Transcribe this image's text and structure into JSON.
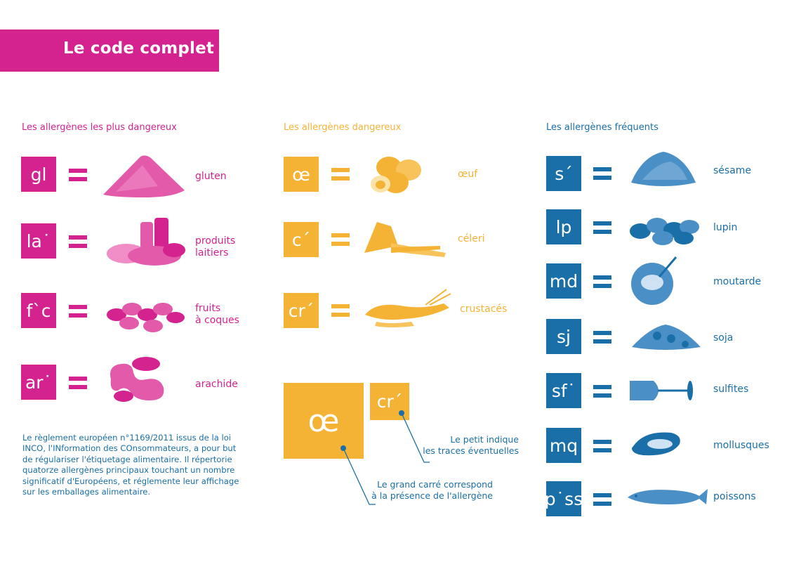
{
  "title": "Le code complet",
  "columns": [
    {
      "title": "Les allergènes les plus dangereux",
      "color": "#d4238f",
      "items": [
        {
          "code": "gl",
          "label": "gluten",
          "icon": "flour-pile-icon"
        },
        {
          "code": "la˙",
          "label": "produits\nlaitiers",
          "icon": "dairy-products-icon"
        },
        {
          "code": "f`c",
          "label": "fruits\nà coques",
          "icon": "nuts-icon"
        },
        {
          "code": "ar˙",
          "label": "arachide",
          "icon": "peanut-icon"
        }
      ]
    },
    {
      "title": "Les allergènes dangereux",
      "color": "#f5b335",
      "items": [
        {
          "code": "œ",
          "label": "œuf",
          "icon": "eggs-icon"
        },
        {
          "code": "c´",
          "label": "céleri",
          "icon": "celery-icon"
        },
        {
          "code": "cr´",
          "label": "crustacés",
          "icon": "crayfish-icon"
        }
      ]
    },
    {
      "title": "Les allergènes fréquents",
      "color": "#1a6fa8",
      "items": [
        {
          "code": "s´",
          "label": "sésame",
          "icon": "sesame-seeds-icon"
        },
        {
          "code": "lp",
          "label": "lupin",
          "icon": "lupin-beans-icon"
        },
        {
          "code": "md",
          "label": "moutarde",
          "icon": "mustard-icon"
        },
        {
          "code": "sj",
          "label": "soja",
          "icon": "soy-beans-icon"
        },
        {
          "code": "sf˙",
          "label": "sulfites",
          "icon": "wine-glass-icon"
        },
        {
          "code": "mq",
          "label": "mollusques",
          "icon": "mussel-icon"
        },
        {
          "code": "p˙ss",
          "label": "poissons",
          "icon": "fish-icon"
        }
      ]
    }
  ],
  "note": "Le règlement européen n°1169/2011 issus de la loi INCO, l'INformation des COnsommateurs, a pour but de régulariser l'étiquetage alimentaire. Il répertorie quatorze allergènes principaux touchant un nombre significatif d'Européens, et réglemente leur affichage sur les emballages alimentaire.",
  "legend": {
    "big_code": "œ",
    "small_code": "cr´",
    "small_text": "Le petit indique\nles traces éventuelles",
    "big_text": "Le grand carré correspond\nà la présence de l'allergène"
  }
}
